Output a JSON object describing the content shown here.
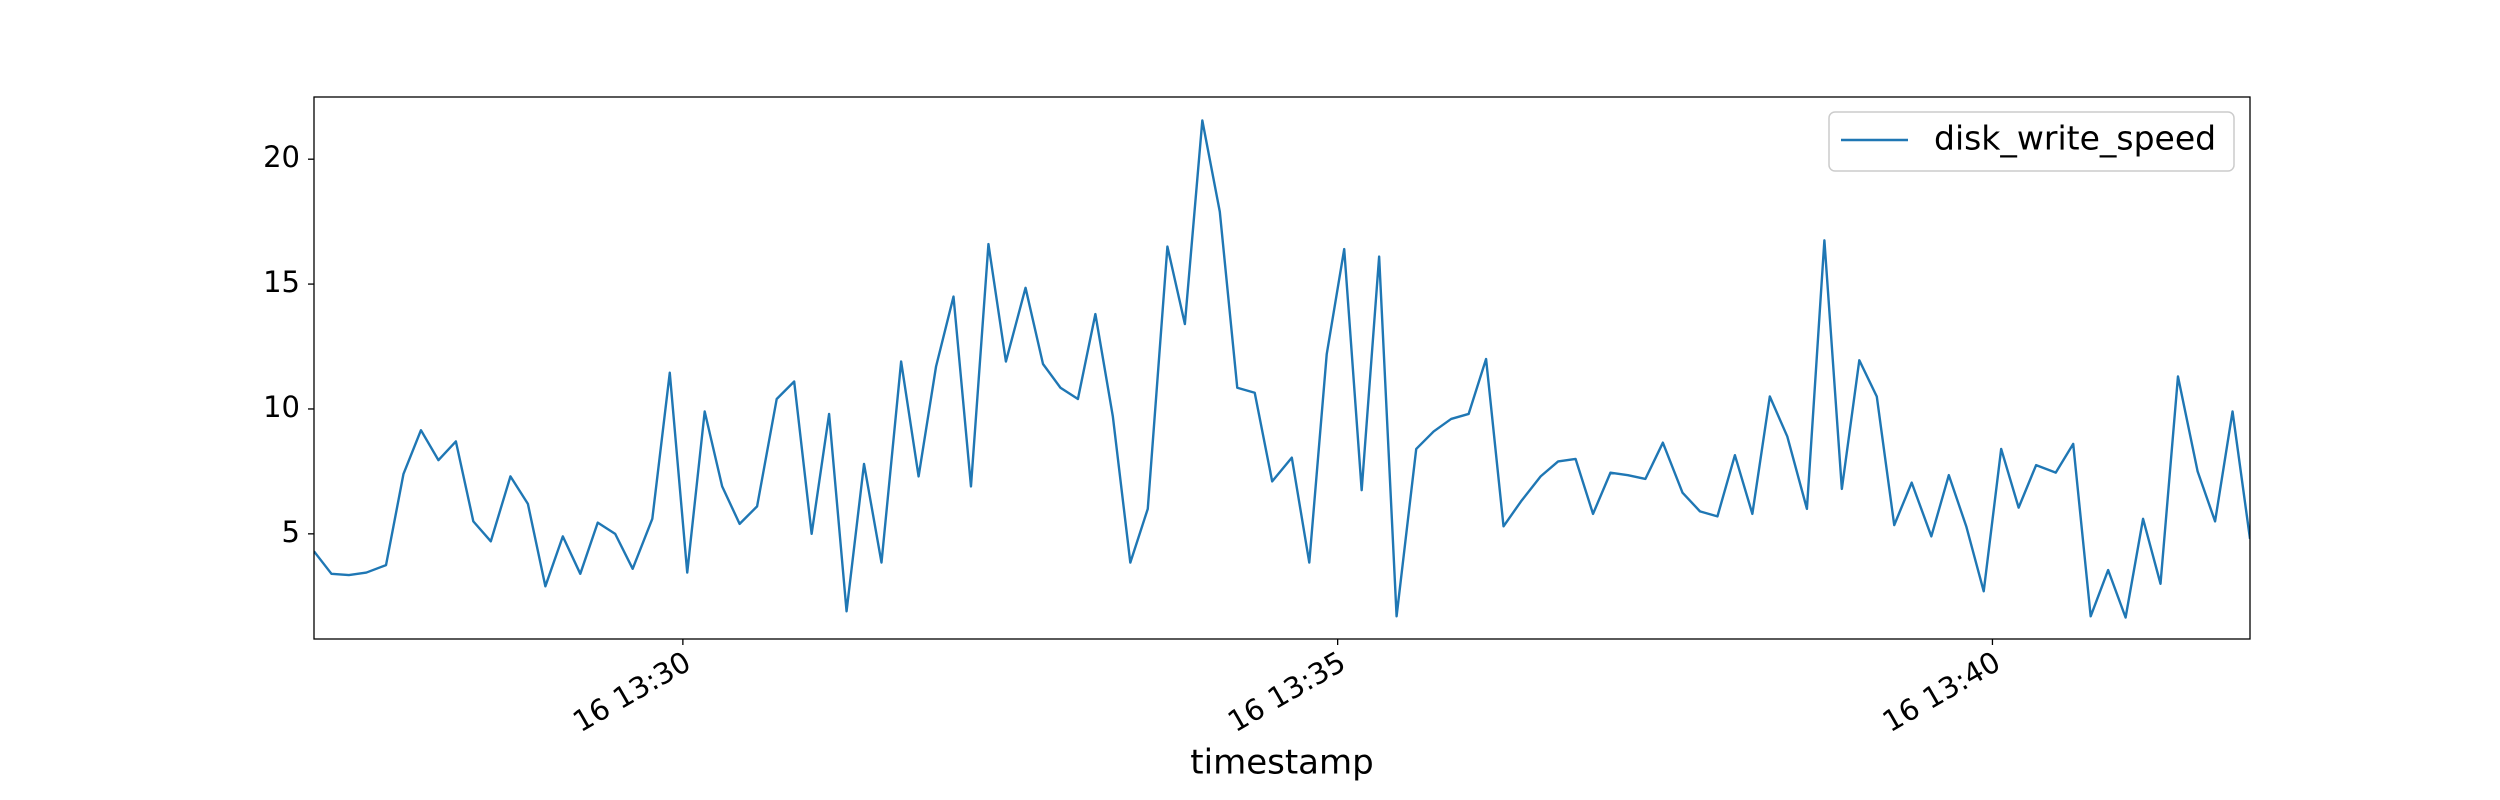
{
  "chart_data": {
    "type": "line",
    "x_label": "timestamp",
    "x": [
      "16 13:27:11",
      "16 13:27:19",
      "16 13:27:27",
      "16 13:27:35",
      "16 13:27:44",
      "16 13:27:52",
      "16 13:28:00",
      "16 13:28:08",
      "16 13:28:16",
      "16 13:28:24",
      "16 13:28:32",
      "16 13:28:41",
      "16 13:28:49",
      "16 13:28:57",
      "16 13:29:05",
      "16 13:29:13",
      "16 13:29:21",
      "16 13:29:29",
      "16 13:29:37",
      "16 13:29:46",
      "16 13:29:54",
      "16 13:30:02",
      "16 13:30:10",
      "16 13:30:18",
      "16 13:30:26",
      "16 13:30:34",
      "16 13:30:43",
      "16 13:30:51",
      "16 13:30:59",
      "16 13:31:07",
      "16 13:31:15",
      "16 13:31:23",
      "16 13:31:31",
      "16 13:31:40",
      "16 13:31:48",
      "16 13:31:56",
      "16 13:32:04",
      "16 13:32:12",
      "16 13:32:20",
      "16 13:32:28",
      "16 13:32:37",
      "16 13:32:45",
      "16 13:32:53",
      "16 13:33:01",
      "16 13:33:09",
      "16 13:33:17",
      "16 13:33:25",
      "16 13:33:33",
      "16 13:33:42",
      "16 13:33:50",
      "16 13:33:58",
      "16 13:34:06",
      "16 13:34:14",
      "16 13:34:22",
      "16 13:34:30",
      "16 13:34:39",
      "16 13:34:47",
      "16 13:34:55",
      "16 13:35:03",
      "16 13:35:11",
      "16 13:35:19",
      "16 13:35:27",
      "16 13:35:36",
      "16 13:35:44",
      "16 13:35:52",
      "16 13:36:00",
      "16 13:36:08",
      "16 13:36:16",
      "16 13:36:24",
      "16 13:36:33",
      "16 13:36:41",
      "16 13:36:49",
      "16 13:36:57",
      "16 13:37:05",
      "16 13:37:13",
      "16 13:37:21",
      "16 13:37:29",
      "16 13:37:38",
      "16 13:37:46",
      "16 13:37:54",
      "16 13:38:02",
      "16 13:38:10",
      "16 13:38:18",
      "16 13:38:26",
      "16 13:38:35",
      "16 13:38:43",
      "16 13:38:51",
      "16 13:38:59",
      "16 13:39:07",
      "16 13:39:15",
      "16 13:39:23",
      "16 13:39:32",
      "16 13:39:40",
      "16 13:39:48",
      "16 13:39:56",
      "16 13:40:04",
      "16 13:40:12",
      "16 13:40:20",
      "16 13:40:29",
      "16 13:40:37",
      "16 13:40:45",
      "16 13:40:53",
      "16 13:41:01",
      "16 13:41:09",
      "16 13:41:17",
      "16 13:41:25",
      "16 13:41:34",
      "16 13:41:42",
      "16 13:41:50",
      "16 13:41:58"
    ],
    "series": [
      {
        "name": "disk_write_speed",
        "color": "#1f77b4",
        "values": [
          4.3,
          3.4,
          3.35,
          3.45,
          3.75,
          7.4,
          9.15,
          7.95,
          8.7,
          5.5,
          4.7,
          7.3,
          6.2,
          2.9,
          4.9,
          3.4,
          5.45,
          5.0,
          3.6,
          5.6,
          11.45,
          3.45,
          9.9,
          6.9,
          5.4,
          6.1,
          10.4,
          11.1,
          5.0,
          9.8,
          1.9,
          7.8,
          3.85,
          11.9,
          7.3,
          11.7,
          14.5,
          6.9,
          16.6,
          11.9,
          14.85,
          11.8,
          10.85,
          10.4,
          13.8,
          9.7,
          3.85,
          6.0,
          16.5,
          13.4,
          21.55,
          17.9,
          10.85,
          10.65,
          7.1,
          8.05,
          3.85,
          12.2,
          16.4,
          6.75,
          16.1,
          1.7,
          8.4,
          9.1,
          9.6,
          9.8,
          12.0,
          5.3,
          6.3,
          7.3,
          7.9,
          8.0,
          5.8,
          7.45,
          7.35,
          7.2,
          8.65,
          6.65,
          5.9,
          5.7,
          8.15,
          5.8,
          10.5,
          8.9,
          6.0,
          16.75,
          6.8,
          11.95,
          10.5,
          5.35,
          7.05,
          4.9,
          7.35,
          5.3,
          2.7,
          8.4,
          6.05,
          7.75,
          7.45,
          8.6,
          1.7,
          3.55,
          1.65,
          5.6,
          3.0,
          11.3,
          7.5,
          5.5,
          9.9,
          4.8
        ]
      }
    ],
    "xlim": [
      "16 13:27:11",
      "16 13:41:58"
    ],
    "xticks": [
      "16 13:30",
      "16 13:35",
      "16 13:40"
    ],
    "ylim": [
      0.79,
      22.49
    ],
    "yticks": [
      5,
      10,
      15,
      20
    ],
    "legend": "upper right",
    "grid": false
  }
}
